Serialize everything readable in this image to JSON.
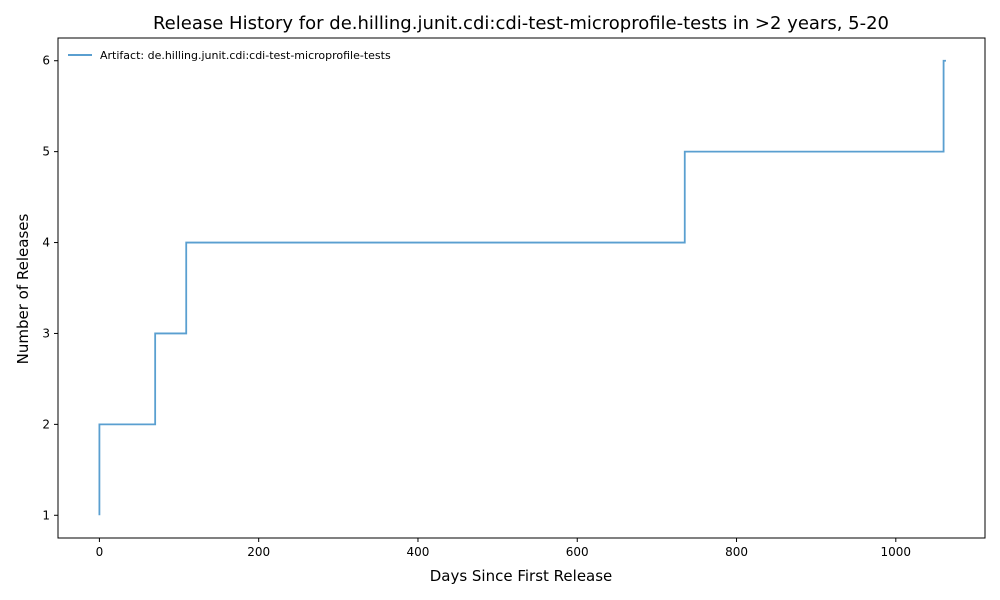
{
  "chart_data": {
    "type": "line",
    "step": "post",
    "title": "Release History for de.hilling.junit.cdi:cdi-test-microprofile-tests in >2 years, 5-20",
    "xlabel": "Days Since First Release",
    "ylabel": "Number of Releases",
    "xlim": [
      -52,
      1112
    ],
    "ylim": [
      0.75,
      6.25
    ],
    "xticks": [
      0,
      200,
      400,
      600,
      800,
      1000
    ],
    "yticks": [
      1,
      2,
      3,
      4,
      5,
      6
    ],
    "grid": false,
    "legend_position": "top-left",
    "series": [
      {
        "name": "Artifact: de.hilling.junit.cdi:cdi-test-microprofile-tests",
        "color": "#5a9fd0",
        "x": [
          0,
          0,
          70,
          109,
          735,
          1060
        ],
        "y": [
          1,
          2,
          3,
          4,
          5,
          6
        ]
      }
    ]
  }
}
